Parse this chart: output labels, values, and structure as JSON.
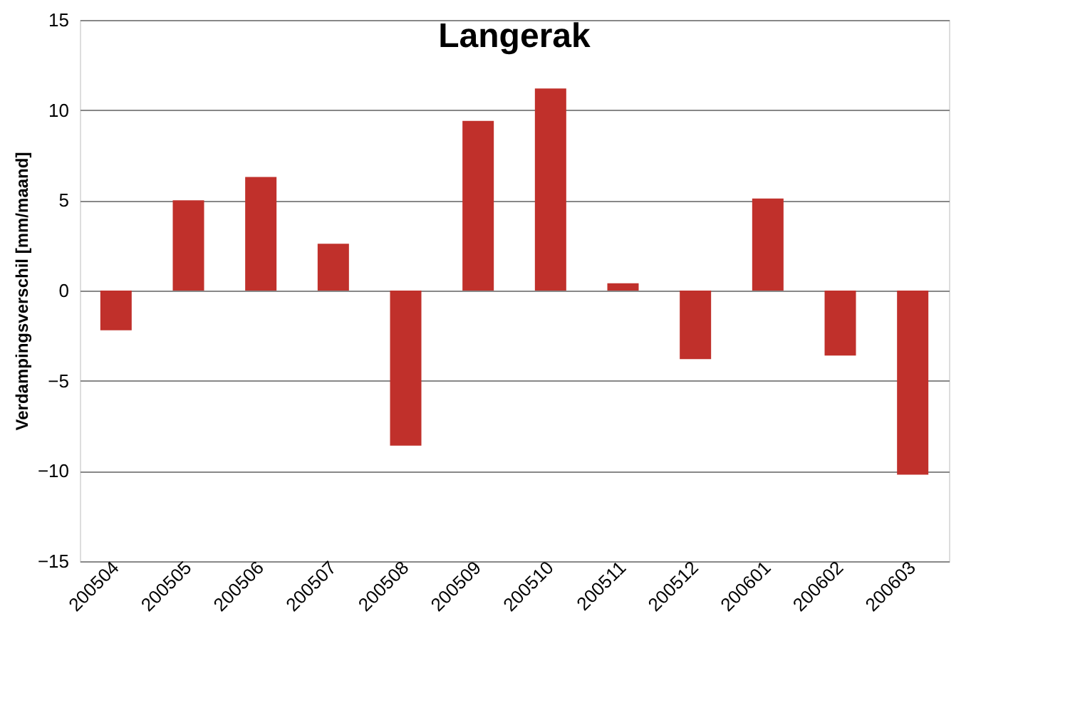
{
  "chart_data": {
    "type": "bar",
    "title": "Langerak",
    "ylabel": "Verdampingsverschil [mm/maand]",
    "categories": [
      "200504",
      "200505",
      "200506",
      "200507",
      "200508",
      "200509",
      "200510",
      "200511",
      "200512",
      "200601",
      "200602",
      "200603"
    ],
    "series": [
      {
        "color": "#c0302b",
        "values": [
          -2.2,
          5.0,
          6.3,
          2.6,
          -8.6,
          9.4,
          11.2,
          0.4,
          -3.8,
          5.1,
          -3.6,
          -10.2
        ]
      }
    ],
    "ylim": [
      -15,
      15
    ],
    "yticks": [
      -15,
      -10,
      -5,
      0,
      5,
      10,
      15
    ],
    "grid": "y"
  }
}
